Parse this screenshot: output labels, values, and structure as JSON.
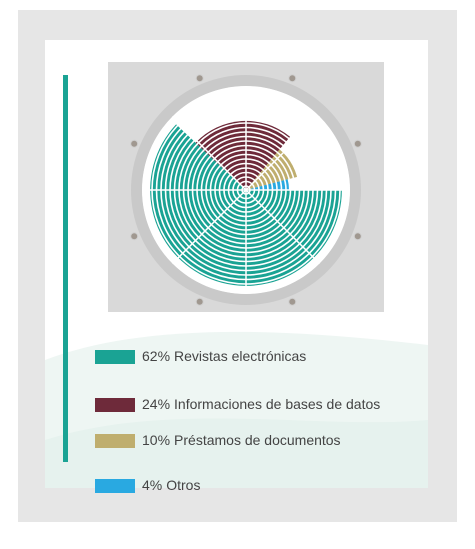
{
  "chart_data": {
    "type": "pie",
    "categories": [
      "Revistas electrónicas",
      "Informaciones de bases de datos",
      "Préstamos de documentos",
      "Otros"
    ],
    "values": [
      62,
      24,
      10,
      4
    ],
    "value_labels": [
      "62%",
      "24%",
      "10%",
      "4%"
    ],
    "colors": [
      "#1aa394",
      "#6e2a3a",
      "#bfae6e",
      "#29a9e1"
    ]
  }
}
